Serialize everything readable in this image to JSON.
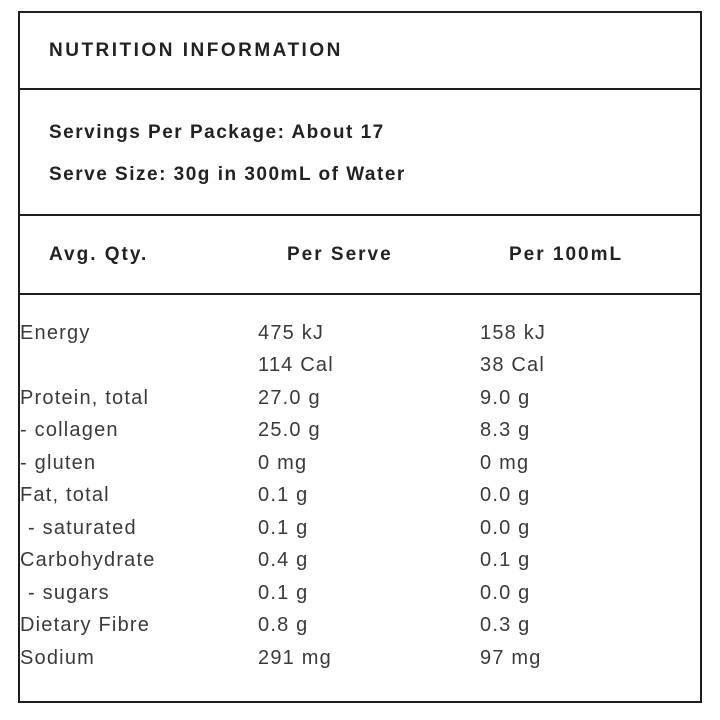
{
  "label": {
    "title": "NUTRITION INFORMATION",
    "serving_info": {
      "servings_per_package": "Servings Per Package: About 17",
      "serve_size": "Serve Size: 30g in 300mL of Water"
    },
    "table": {
      "columns": [
        "Avg. Qty.",
        "Per Serve",
        "Per 100mL"
      ],
      "rows": [
        {
          "label": "Energy",
          "per_serve": "475 kJ",
          "per_100ml": "158 kJ"
        },
        {
          "label": "",
          "per_serve": "114 Cal",
          "per_100ml": "38 Cal"
        },
        {
          "label": "Protein, total",
          "per_serve": "27.0 g",
          "per_100ml": "9.0 g"
        },
        {
          "label": "- collagen",
          "per_serve": "25.0 g",
          "per_100ml": "8.3 g"
        },
        {
          "label": "- gluten",
          "per_serve": "0 mg",
          "per_100ml": "0 mg"
        },
        {
          "label": "Fat, total",
          "per_serve": "0.1 g",
          "per_100ml": "0.0 g"
        },
        {
          "label": "- saturated",
          "per_serve": "0.1 g",
          "per_100ml": "0.0 g"
        },
        {
          "label": "Carbohydrate",
          "per_serve": "0.4 g",
          "per_100ml": "0.1 g"
        },
        {
          "label": "- sugars",
          "per_serve": "0.1 g",
          "per_100ml": "0.0 g"
        },
        {
          "label": "Dietary Fibre",
          "per_serve": "0.8 g",
          "per_100ml": "0.3 g"
        },
        {
          "label": "Sodium",
          "per_serve": "291 mg",
          "per_100ml": "97 mg"
        }
      ]
    },
    "colors": {
      "border": "#1e1e1e",
      "heading_text": "#222222",
      "body_text": "#3a3a3a",
      "background": "#ffffff"
    }
  }
}
